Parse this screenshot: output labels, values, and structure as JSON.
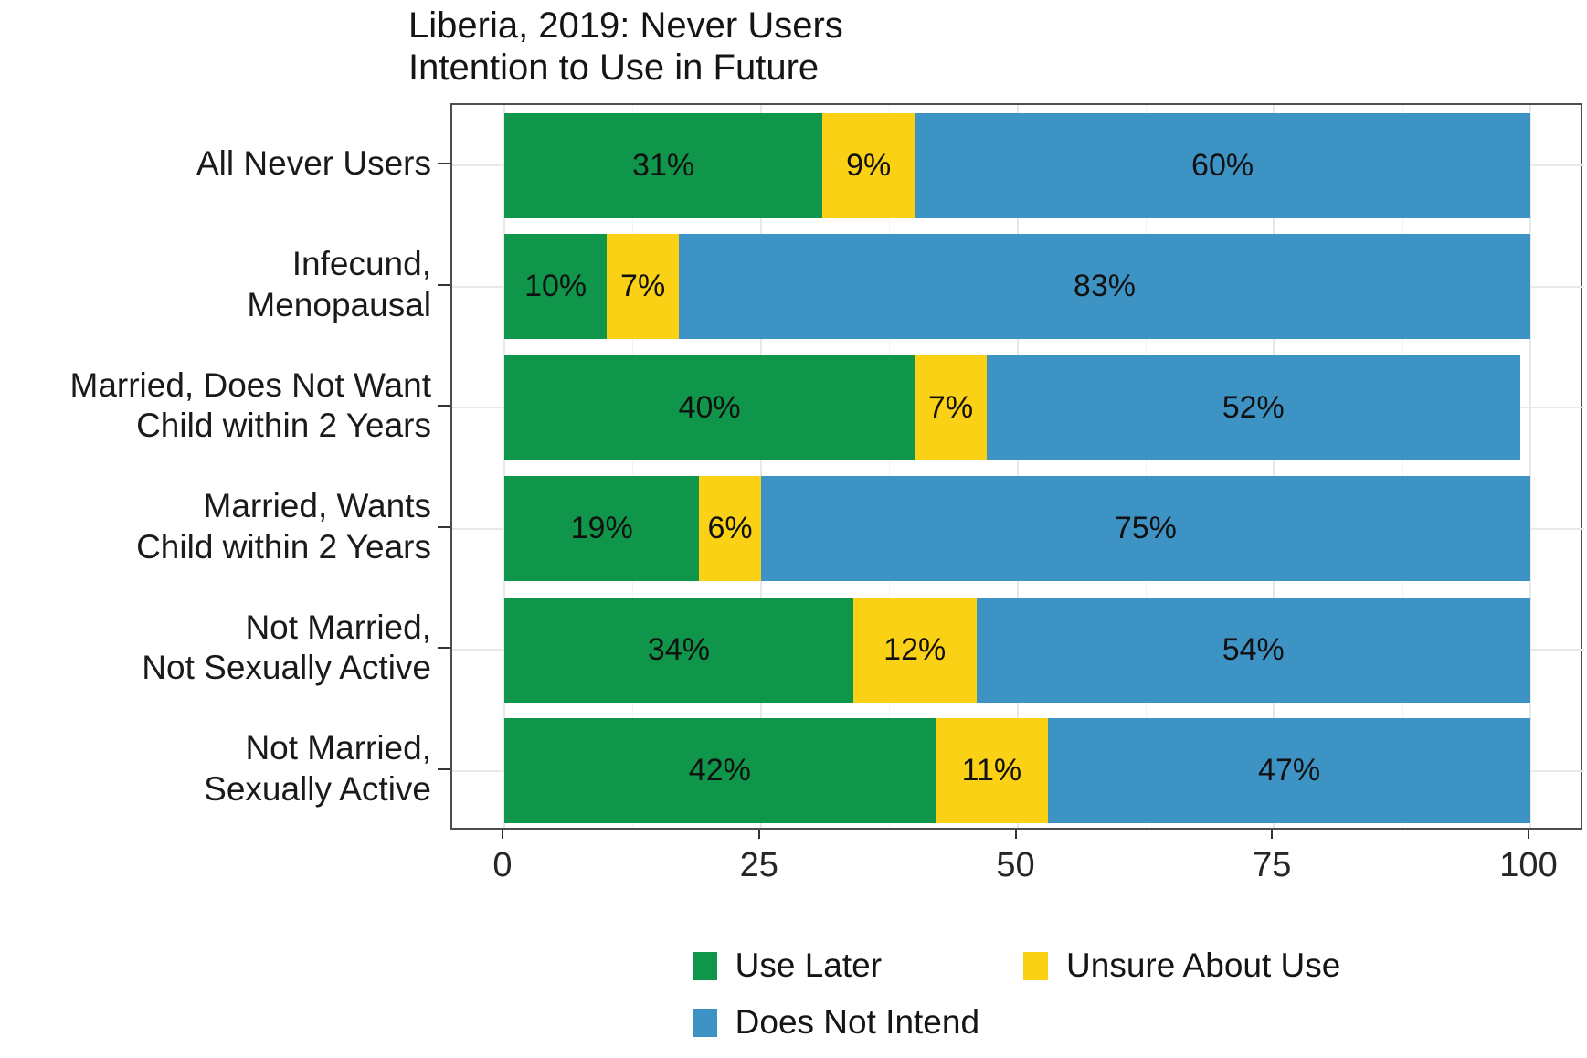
{
  "title": {
    "line1": "Liberia, 2019: Never Users",
    "line2": "Intention to Use in Future"
  },
  "colors": {
    "background": "#FFFFFF",
    "panel_border": "#4D4D4D",
    "grid_major": "#E8E8E8",
    "grid_minor": "#F4F4F4",
    "axis_tick": "#333333",
    "text": "#1A1A1A",
    "use_later_green": "#10964A",
    "unsure_yellow": "#FBD116",
    "does_not_intend_blue": "#3E93C5"
  },
  "chart_data": {
    "type": "bar",
    "orientation": "horizontal",
    "stacked": true,
    "title": "Liberia, 2019: Never Users\nIntention to Use in Future",
    "categories": [
      "All Never Users",
      "Infecund,\nMenopausal",
      "Married, Does Not Want\nChild within 2 Years",
      "Married, Wants\nChild within 2 Years",
      "Not Married,\nNot Sexually Active",
      "Not Married,\nSexually Active"
    ],
    "series": [
      {
        "name": "Use Later",
        "color": "#10964A",
        "values": [
          31,
          10,
          40,
          19,
          34,
          42
        ]
      },
      {
        "name": "Unsure About Use",
        "color": "#FBD116",
        "values": [
          9,
          7,
          7,
          6,
          12,
          11
        ]
      },
      {
        "name": "Does Not Intend",
        "color": "#3E93C5",
        "values": [
          60,
          83,
          52,
          75,
          54,
          47
        ]
      }
    ],
    "value_label_suffix": "%",
    "xlabel": "",
    "ylabel": "",
    "xlim": [
      0,
      100
    ],
    "x_ticks": [
      0,
      25,
      50,
      75,
      100
    ],
    "x_minor_ticks": [
      12.5,
      37.5,
      62.5,
      87.5
    ],
    "grid": true,
    "legend_position": "bottom",
    "legend_order": [
      "Use Later",
      "Unsure About Use",
      "Does Not Intend"
    ]
  }
}
